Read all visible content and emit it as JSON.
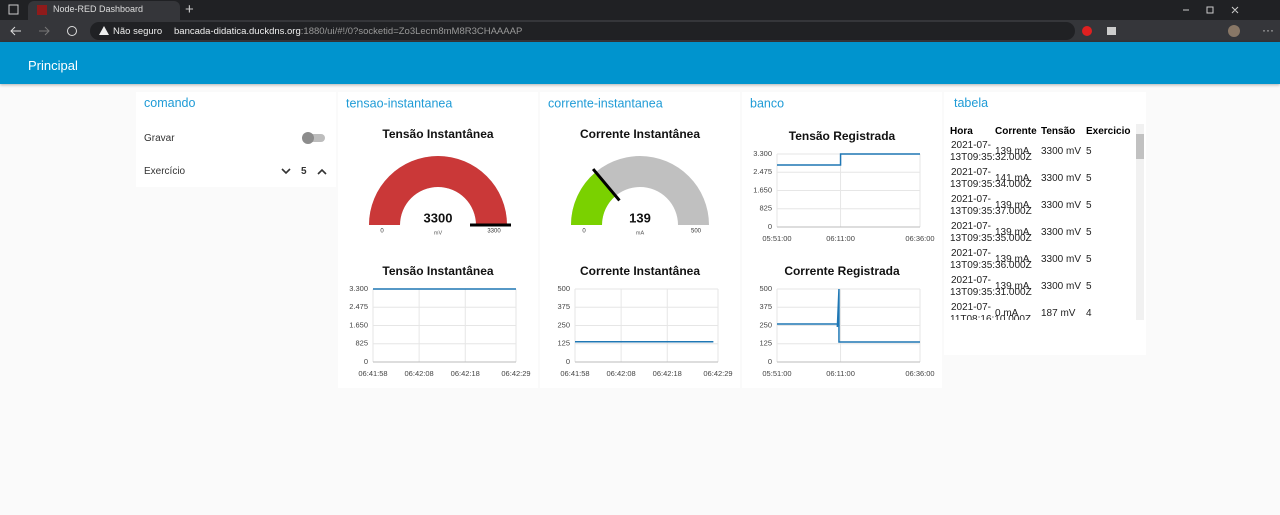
{
  "browser": {
    "tab_title": "Node-RED Dashboard",
    "security": "Não seguro",
    "url_host": "bancada-didatica.duckdns.org",
    "url_rest": ":1880/ui/#!/0?socketid=Zo3Lecm8mM8R3CHAAAAP"
  },
  "header": {
    "title": "Principal"
  },
  "comando": {
    "title": "comando",
    "switch_label": "Gravar",
    "switch_on": false,
    "numeric_label": "Exercício",
    "numeric_value": 5
  },
  "panels": [
    {
      "title": "tensao-instantanea",
      "items": [
        {
          "type": "gauge",
          "title": "Tensão Instantânea",
          "value": 3300,
          "min": 0,
          "max": 3300,
          "unit": "mV",
          "color": "#ca3838",
          "track_color": "#c0c0c0"
        },
        {
          "type": "line",
          "title": "Tensão Instantânea",
          "x": [
            "06:41:58",
            "06:42:29"
          ],
          "values": [
            3300,
            3300
          ],
          "color": "#1f77b4",
          "xlim": [
            "06:41:58",
            "06:42:29"
          ],
          "xticks": [
            "06:41:58",
            "06:42:08",
            "06:42:18",
            "06:42:29"
          ],
          "ylim": [
            0,
            3300
          ],
          "yticks": [
            0,
            825,
            {
              "value": 1650,
              "label": "1.650"
            },
            {
              "value": 2475,
              "label": "2.475"
            },
            {
              "value": 3300,
              "label": "3.300"
            }
          ],
          "grid": true
        }
      ]
    },
    {
      "title": "corrente-instantanea",
      "items": [
        {
          "type": "gauge",
          "title": "Corrente Instantânea",
          "value": 139,
          "min": 0,
          "max": 500,
          "unit": "mA",
          "color": "#7ad100",
          "track_color": "#c0c0c0"
        },
        {
          "type": "line",
          "title": "Corrente Instantânea",
          "x": [
            "06:41:58",
            "06:42:28"
          ],
          "values": [
            139,
            139
          ],
          "color": "#1f77b4",
          "xlim": [
            "06:41:58",
            "06:42:29"
          ],
          "xticks": [
            "06:41:58",
            "06:42:08",
            "06:42:18",
            "06:42:29"
          ],
          "ylim": [
            0,
            500
          ],
          "yticks": [
            0,
            125,
            250,
            375,
            500
          ],
          "grid": true
        }
      ]
    },
    {
      "title": "banco",
      "items": [
        {
          "type": "line",
          "title": "Tensão Registrada",
          "x": [
            "05:51:00",
            "06:11:00",
            "06:11:00",
            "06:36:00"
          ],
          "values": [
            2800,
            2800,
            3300,
            3300
          ],
          "color": "#1f77b4",
          "xlim": [
            "05:51:00",
            "06:36:00"
          ],
          "xticks": [
            "05:51:00",
            "06:11:00",
            "06:36:00"
          ],
          "ylim": [
            0,
            3300
          ],
          "yticks": [
            0,
            825,
            {
              "value": 1650,
              "label": "1.650"
            },
            {
              "value": 2475,
              "label": "2.475"
            },
            {
              "value": 3300,
              "label": "3.300"
            }
          ],
          "grid": true
        },
        {
          "type": "line",
          "title": "Corrente Registrada",
          "x": [
            "05:51:00",
            "06:10:00",
            "06:10:00",
            "06:10:30",
            "06:10:30",
            "06:36:00"
          ],
          "values": [
            260,
            260,
            240,
            500,
            137,
            137
          ],
          "color": "#1f77b4",
          "xlim": [
            "05:51:00",
            "06:36:00"
          ],
          "xticks": [
            "05:51:00",
            "06:11:00",
            "06:36:00"
          ],
          "ylim": [
            0,
            500
          ],
          "yticks": [
            0,
            125,
            250,
            375,
            500
          ],
          "grid": true
        }
      ]
    }
  ],
  "tabela": {
    "title": "tabela",
    "columns": [
      "Hora",
      "Corrente",
      "Tensão",
      "Exercicio"
    ],
    "rows": [
      [
        "2021-07-13T09:35:32.000Z",
        "139 mA",
        "3300 mV",
        5
      ],
      [
        "2021-07-13T09:35:34.000Z",
        "141 mA",
        "3300 mV",
        5
      ],
      [
        "2021-07-13T09:35:37.000Z",
        "139 mA",
        "3300 mV",
        5
      ],
      [
        "2021-07-13T09:35:35.000Z",
        "139 mA",
        "3300 mV",
        5
      ],
      [
        "2021-07-13T09:35:36.000Z",
        "139 mA",
        "3300 mV",
        5
      ],
      [
        "2021-07-13T09:35:31.000Z",
        "139 mA",
        "3300 mV",
        5
      ],
      [
        "2021-07-11T08:16:10.000Z",
        "0 mA",
        "187 mV",
        4
      ]
    ]
  }
}
